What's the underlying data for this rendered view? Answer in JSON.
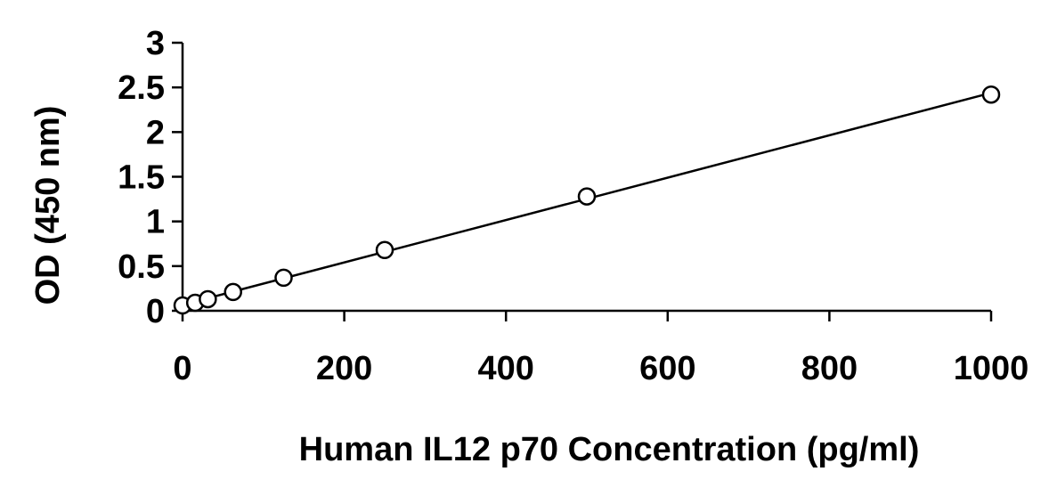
{
  "chart_data": {
    "type": "scatter",
    "title": "",
    "xlabel": "Human IL12 p70 Concentration (pg/ml)",
    "ylabel": "OD (450 nm)",
    "xlim": [
      0,
      1000
    ],
    "ylim": [
      0,
      3
    ],
    "xticks": [
      0,
      200,
      400,
      600,
      800,
      1000
    ],
    "yticks": [
      0,
      0.5,
      1,
      1.5,
      2,
      2.5,
      3
    ],
    "xtick_labels": [
      "0",
      "200",
      "400",
      "600",
      "800",
      "1000"
    ],
    "ytick_labels": [
      "0",
      "0.5",
      "1",
      "1.5",
      "2",
      "2.5",
      "3"
    ],
    "grid": false,
    "legend": "none",
    "marker": "open-circle",
    "trendline": "linear",
    "colors": {
      "axis": "#000000",
      "marker": "#000000",
      "line": "#000000",
      "background": "#ffffff"
    },
    "series": [
      {
        "x": [
          0,
          15.6,
          31.25,
          62.5,
          125,
          250,
          500,
          1000
        ],
        "y": [
          0.06,
          0.09,
          0.13,
          0.21,
          0.37,
          0.68,
          1.28,
          2.42
        ]
      }
    ]
  }
}
